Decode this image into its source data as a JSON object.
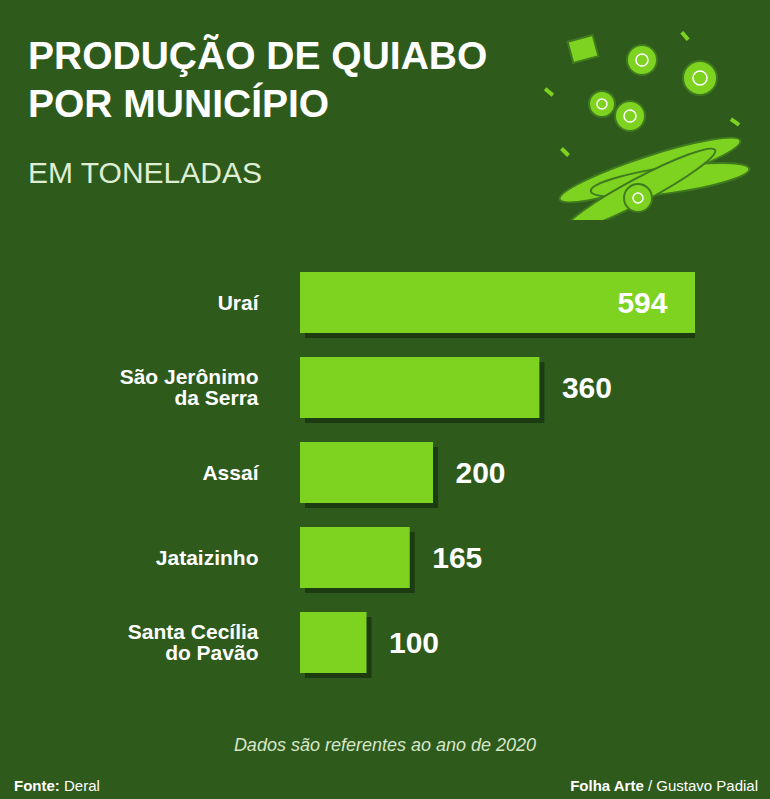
{
  "chart_data": {
    "type": "bar",
    "orientation": "horizontal",
    "title": "PRODUÇÃO DE QUIABO POR MUNICÍPIO",
    "subtitle": "EM TONELADAS",
    "categories": [
      "Uraí",
      "São Jerônimo da Serra",
      "Assaí",
      "Jataizinho",
      "Santa Cecília do Pavão"
    ],
    "values": [
      594,
      360,
      200,
      165,
      100
    ],
    "color": "#7ed321",
    "xlim": [
      0,
      594
    ],
    "data_labels": true,
    "tick_labels": "y",
    "grid": false,
    "note": "Dados são referentes ao ano de 2020",
    "source": "Fonte: Deral",
    "credit": "Folha Arte / Gustavo Padial"
  }
}
